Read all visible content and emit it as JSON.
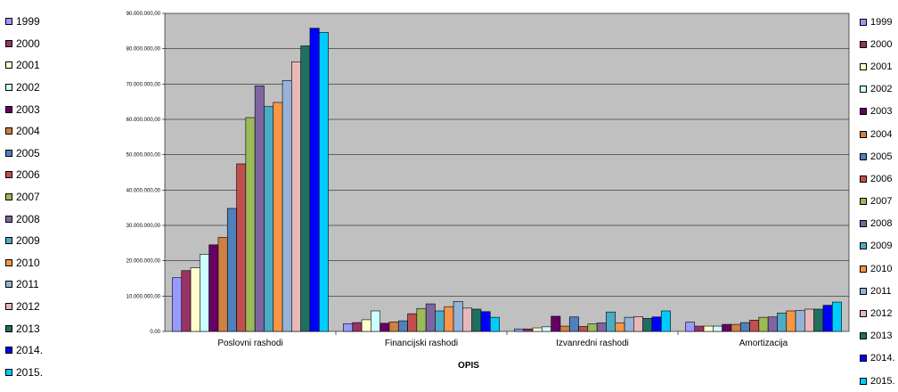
{
  "chart_data": {
    "type": "bar",
    "title": "",
    "xlabel": "OPIS",
    "ylabel": "",
    "ylim": [
      0,
      90000000
    ],
    "yticks": [
      0,
      10000000,
      20000000,
      30000000,
      40000000,
      50000000,
      60000000,
      70000000,
      80000000,
      90000000
    ],
    "ytick_labels": [
      "0,00",
      "10.000.000,00",
      "20.000.000,00",
      "30.000.000,00",
      "40.000.000,00",
      "50.000.000,00",
      "60.000.000,00",
      "70.000.000,00",
      "80.000.000,00",
      "90.000.000,00"
    ],
    "grid": true,
    "plot_background": "#c0c0c0",
    "categories": [
      "Poslovni rashodi",
      "Financijski rashodi",
      "Izvanredni rashodi",
      "Amortizacija"
    ],
    "series": [
      {
        "name": "1999",
        "color": "#9999ff",
        "values": [
          15200000,
          2200000,
          700000,
          2600000
        ]
      },
      {
        "name": "2000",
        "color": "#993366",
        "values": [
          17200000,
          2500000,
          700000,
          1500000
        ]
      },
      {
        "name": "2001",
        "color": "#ffffcc",
        "values": [
          18000000,
          3300000,
          1000000,
          1500000
        ]
      },
      {
        "name": "2002",
        "color": "#ccffff",
        "values": [
          21800000,
          5800000,
          1300000,
          1500000
        ]
      },
      {
        "name": "2003",
        "color": "#660066",
        "values": [
          24500000,
          2300000,
          4300000,
          2000000
        ]
      },
      {
        "name": "2004",
        "color": "#d08040",
        "values": [
          26600000,
          2700000,
          1500000,
          2000000
        ]
      },
      {
        "name": "2005",
        "color": "#4f81bd",
        "values": [
          34800000,
          3000000,
          4100000,
          2500000
        ]
      },
      {
        "name": "2006",
        "color": "#c0504d",
        "values": [
          47400000,
          5000000,
          1400000,
          3200000
        ]
      },
      {
        "name": "2007",
        "color": "#9bbb59",
        "values": [
          60500000,
          6500000,
          2100000,
          4000000
        ]
      },
      {
        "name": "2008",
        "color": "#8064a2",
        "values": [
          69500000,
          7800000,
          2400000,
          4100000
        ]
      },
      {
        "name": "2009",
        "color": "#4bacc6",
        "values": [
          63600000,
          5800000,
          5500000,
          5200000
        ]
      },
      {
        "name": "2010",
        "color": "#f79646",
        "values": [
          64800000,
          7000000,
          2400000,
          5800000
        ]
      },
      {
        "name": "2011",
        "color": "#95b3d7",
        "values": [
          71000000,
          8500000,
          4000000,
          5900000
        ]
      },
      {
        "name": "2012",
        "color": "#e6b9b8",
        "values": [
          76300000,
          6600000,
          4200000,
          6300000
        ]
      },
      {
        "name": "2013",
        "color": "#1f7060",
        "values": [
          80800000,
          6300000,
          3700000,
          6300000
        ]
      },
      {
        "name": "2014.",
        "color": "#0000ff",
        "values": [
          85800000,
          5600000,
          4100000,
          7400000
        ]
      },
      {
        "name": "2015.",
        "color": "#00ccff",
        "values": [
          84600000,
          4000000,
          5800000,
          8300000
        ]
      }
    ],
    "legend_placement": [
      "left",
      "right"
    ]
  }
}
